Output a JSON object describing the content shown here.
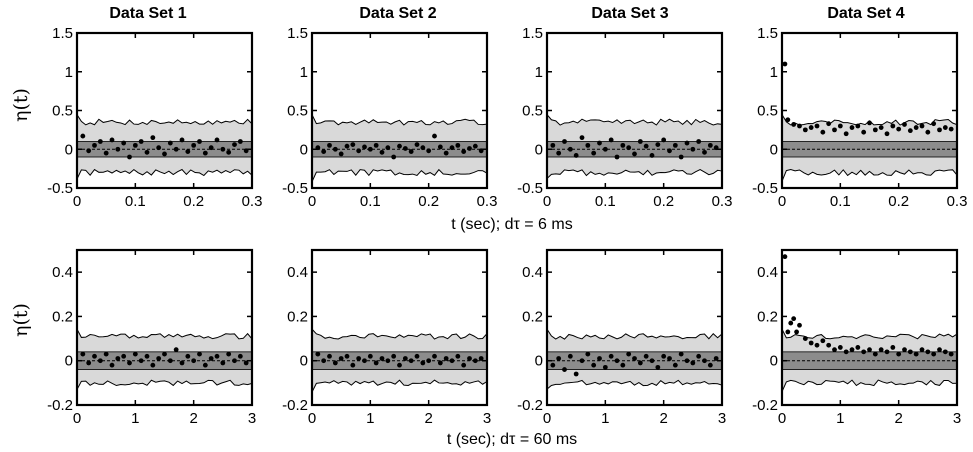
{
  "chart_data": {
    "type": "scatter",
    "ylabel": "η(t)",
    "rows": [
      {
        "xlabel": "t (sec); dτ = 6 ms",
        "xlim": [
          0,
          0.3
        ],
        "ylim": [
          -0.5,
          1.5
        ],
        "xticks": [
          "0",
          "0.1",
          "0.2",
          "0.3"
        ],
        "yticks": [
          "-0.5",
          "0",
          "0.5",
          "1",
          "1.5"
        ],
        "dark_band": [
          -0.1,
          0.1
        ],
        "light_band": [
          -0.3,
          0.35
        ],
        "panels": [
          {
            "title": "Data Set 1",
            "points": [
              [
                0.01,
                0.17
              ],
              [
                0.02,
                -0.02
              ],
              [
                0.03,
                0.05
              ],
              [
                0.04,
                0.1
              ],
              [
                0.05,
                -0.05
              ],
              [
                0.06,
                0.12
              ],
              [
                0.07,
                0.0
              ],
              [
                0.08,
                0.08
              ],
              [
                0.09,
                -0.1
              ],
              [
                0.1,
                0.05
              ],
              [
                0.11,
                0.1
              ],
              [
                0.12,
                -0.04
              ],
              [
                0.13,
                0.15
              ],
              [
                0.14,
                0.02
              ],
              [
                0.15,
                -0.06
              ],
              [
                0.16,
                0.08
              ],
              [
                0.17,
                0.0
              ],
              [
                0.18,
                0.12
              ],
              [
                0.19,
                -0.03
              ],
              [
                0.2,
                0.05
              ],
              [
                0.21,
                0.1
              ],
              [
                0.22,
                -0.05
              ],
              [
                0.23,
                0.02
              ],
              [
                0.24,
                0.12
              ],
              [
                0.25,
                0.0
              ],
              [
                0.26,
                -0.04
              ],
              [
                0.27,
                0.06
              ],
              [
                0.28,
                0.1
              ],
              [
                0.29,
                -0.02
              ]
            ]
          },
          {
            "title": "Data Set 2",
            "points": [
              [
                0.01,
                0.02
              ],
              [
                0.02,
                -0.03
              ],
              [
                0.03,
                0.05
              ],
              [
                0.04,
                0.0
              ],
              [
                0.05,
                -0.06
              ],
              [
                0.06,
                0.04
              ],
              [
                0.07,
                0.06
              ],
              [
                0.08,
                -0.02
              ],
              [
                0.09,
                0.03
              ],
              [
                0.1,
                0.0
              ],
              [
                0.11,
                0.05
              ],
              [
                0.12,
                -0.04
              ],
              [
                0.13,
                0.02
              ],
              [
                0.14,
                -0.1
              ],
              [
                0.15,
                0.04
              ],
              [
                0.16,
                0.01
              ],
              [
                0.17,
                -0.03
              ],
              [
                0.18,
                0.06
              ],
              [
                0.19,
                0.02
              ],
              [
                0.2,
                -0.02
              ],
              [
                0.21,
                0.17
              ],
              [
                0.22,
                0.03
              ],
              [
                0.23,
                -0.05
              ],
              [
                0.24,
                0.02
              ],
              [
                0.25,
                0.05
              ],
              [
                0.26,
                -0.03
              ],
              [
                0.27,
                0.01
              ],
              [
                0.28,
                0.04
              ],
              [
                0.29,
                -0.02
              ]
            ]
          },
          {
            "title": "Data Set 3",
            "points": [
              [
                0.01,
                0.05
              ],
              [
                0.02,
                -0.05
              ],
              [
                0.03,
                0.1
              ],
              [
                0.04,
                0.0
              ],
              [
                0.05,
                -0.08
              ],
              [
                0.06,
                0.15
              ],
              [
                0.07,
                0.05
              ],
              [
                0.08,
                -0.05
              ],
              [
                0.09,
                0.08
              ],
              [
                0.1,
                0.0
              ],
              [
                0.11,
                0.12
              ],
              [
                0.12,
                -0.1
              ],
              [
                0.13,
                0.05
              ],
              [
                0.14,
                0.02
              ],
              [
                0.15,
                -0.06
              ],
              [
                0.16,
                0.1
              ],
              [
                0.17,
                0.04
              ],
              [
                0.18,
                -0.08
              ],
              [
                0.19,
                0.06
              ],
              [
                0.2,
                0.12
              ],
              [
                0.21,
                -0.02
              ],
              [
                0.22,
                0.05
              ],
              [
                0.23,
                -0.1
              ],
              [
                0.24,
                0.08
              ],
              [
                0.25,
                0.0
              ],
              [
                0.26,
                0.1
              ],
              [
                0.27,
                -0.04
              ],
              [
                0.28,
                0.05
              ],
              [
                0.29,
                0.02
              ]
            ]
          },
          {
            "title": "Data Set 4",
            "points": [
              [
                0.005,
                1.1
              ],
              [
                0.01,
                0.38
              ],
              [
                0.02,
                0.32
              ],
              [
                0.03,
                0.3
              ],
              [
                0.04,
                0.25
              ],
              [
                0.05,
                0.28
              ],
              [
                0.06,
                0.3
              ],
              [
                0.07,
                0.22
              ],
              [
                0.08,
                0.33
              ],
              [
                0.09,
                0.25
              ],
              [
                0.1,
                0.3
              ],
              [
                0.11,
                0.2
              ],
              [
                0.12,
                0.28
              ],
              [
                0.13,
                0.3
              ],
              [
                0.14,
                0.22
              ],
              [
                0.15,
                0.34
              ],
              [
                0.16,
                0.25
              ],
              [
                0.17,
                0.28
              ],
              [
                0.18,
                0.2
              ],
              [
                0.19,
                0.3
              ],
              [
                0.2,
                0.26
              ],
              [
                0.21,
                0.32
              ],
              [
                0.22,
                0.24
              ],
              [
                0.23,
                0.28
              ],
              [
                0.24,
                0.3
              ],
              [
                0.25,
                0.22
              ],
              [
                0.26,
                0.33
              ],
              [
                0.27,
                0.25
              ],
              [
                0.28,
                0.28
              ],
              [
                0.29,
                0.26
              ]
            ]
          }
        ]
      },
      {
        "xlabel": "t (sec); dτ = 60 ms",
        "xlim": [
          0,
          3
        ],
        "ylim": [
          -0.2,
          0.5
        ],
        "xticks": [
          "0",
          "1",
          "2",
          "3"
        ],
        "yticks": [
          "-0.2",
          "0",
          "0.2",
          "0.4"
        ],
        "dark_band": [
          -0.04,
          0.04
        ],
        "light_band": [
          -0.1,
          0.11
        ],
        "panels": [
          {
            "title": "",
            "points": [
              [
                0.1,
                0.03
              ],
              [
                0.2,
                -0.01
              ],
              [
                0.3,
                0.02
              ],
              [
                0.4,
                0.0
              ],
              [
                0.5,
                0.03
              ],
              [
                0.6,
                -0.02
              ],
              [
                0.7,
                0.01
              ],
              [
                0.8,
                0.02
              ],
              [
                0.9,
                -0.01
              ],
              [
                1.0,
                0.03
              ],
              [
                1.1,
                0.0
              ],
              [
                1.2,
                0.02
              ],
              [
                1.3,
                -0.02
              ],
              [
                1.4,
                0.01
              ],
              [
                1.5,
                0.03
              ],
              [
                1.6,
                0.0
              ],
              [
                1.7,
                0.05
              ],
              [
                1.8,
                -0.01
              ],
              [
                1.9,
                0.02
              ],
              [
                2.0,
                0.0
              ],
              [
                2.1,
                0.03
              ],
              [
                2.2,
                -0.02
              ],
              [
                2.3,
                0.01
              ],
              [
                2.4,
                0.02
              ],
              [
                2.5,
                -0.01
              ],
              [
                2.6,
                0.03
              ],
              [
                2.7,
                0.0
              ],
              [
                2.8,
                0.02
              ],
              [
                2.9,
                -0.01
              ]
            ]
          },
          {
            "title": "",
            "points": [
              [
                0.1,
                0.03
              ],
              [
                0.2,
                0.0
              ],
              [
                0.3,
                0.02
              ],
              [
                0.4,
                -0.01
              ],
              [
                0.5,
                0.01
              ],
              [
                0.6,
                0.02
              ],
              [
                0.7,
                -0.02
              ],
              [
                0.8,
                0.01
              ],
              [
                0.9,
                0.0
              ],
              [
                1.0,
                0.02
              ],
              [
                1.1,
                -0.01
              ],
              [
                1.2,
                0.01
              ],
              [
                1.3,
                0.0
              ],
              [
                1.4,
                0.02
              ],
              [
                1.5,
                -0.02
              ],
              [
                1.6,
                0.01
              ],
              [
                1.7,
                0.0
              ],
              [
                1.8,
                0.02
              ],
              [
                1.9,
                -0.01
              ],
              [
                2.0,
                0.0
              ],
              [
                2.1,
                0.02
              ],
              [
                2.2,
                -0.01
              ],
              [
                2.3,
                0.01
              ],
              [
                2.4,
                0.0
              ],
              [
                2.5,
                0.02
              ],
              [
                2.6,
                -0.02
              ],
              [
                2.7,
                0.01
              ],
              [
                2.8,
                0.0
              ],
              [
                2.9,
                0.01
              ]
            ]
          },
          {
            "title": "",
            "points": [
              [
                0.1,
                -0.02
              ],
              [
                0.2,
                0.01
              ],
              [
                0.3,
                -0.04
              ],
              [
                0.4,
                0.02
              ],
              [
                0.5,
                -0.06
              ],
              [
                0.6,
                0.0
              ],
              [
                0.7,
                0.03
              ],
              [
                0.8,
                -0.02
              ],
              [
                0.9,
                0.01
              ],
              [
                1.0,
                -0.03
              ],
              [
                1.1,
                0.02
              ],
              [
                1.2,
                0.0
              ],
              [
                1.3,
                -0.02
              ],
              [
                1.4,
                0.03
              ],
              [
                1.5,
                0.01
              ],
              [
                1.6,
                -0.01
              ],
              [
                1.7,
                0.02
              ],
              [
                1.8,
                0.0
              ],
              [
                1.9,
                -0.03
              ],
              [
                2.0,
                0.02
              ],
              [
                2.1,
                0.01
              ],
              [
                2.2,
                -0.02
              ],
              [
                2.3,
                0.03
              ],
              [
                2.4,
                0.0
              ],
              [
                2.5,
                -0.01
              ],
              [
                2.6,
                0.02
              ],
              [
                2.7,
                0.0
              ],
              [
                2.8,
                -0.02
              ],
              [
                2.9,
                0.01
              ]
            ]
          },
          {
            "title": "",
            "points": [
              [
                0.05,
                0.47
              ],
              [
                0.1,
                0.13
              ],
              [
                0.15,
                0.17
              ],
              [
                0.2,
                0.19
              ],
              [
                0.25,
                0.13
              ],
              [
                0.3,
                0.16
              ],
              [
                0.4,
                0.1
              ],
              [
                0.5,
                0.08
              ],
              [
                0.6,
                0.07
              ],
              [
                0.7,
                0.09
              ],
              [
                0.8,
                0.07
              ],
              [
                0.9,
                0.05
              ],
              [
                1.0,
                0.06
              ],
              [
                1.1,
                0.04
              ],
              [
                1.2,
                0.05
              ],
              [
                1.3,
                0.06
              ],
              [
                1.4,
                0.04
              ],
              [
                1.5,
                0.05
              ],
              [
                1.6,
                0.03
              ],
              [
                1.7,
                0.05
              ],
              [
                1.8,
                0.04
              ],
              [
                1.9,
                0.06
              ],
              [
                2.0,
                0.03
              ],
              [
                2.1,
                0.05
              ],
              [
                2.2,
                0.04
              ],
              [
                2.3,
                0.03
              ],
              [
                2.4,
                0.05
              ],
              [
                2.5,
                0.04
              ],
              [
                2.6,
                0.03
              ],
              [
                2.7,
                0.05
              ],
              [
                2.8,
                0.04
              ],
              [
                2.9,
                0.03
              ]
            ]
          }
        ]
      }
    ],
    "grid": false,
    "colors": {
      "dark_band": "#8c8c8c",
      "light_band": "#d9d9d9",
      "points": "#000000",
      "envelope": "#000000"
    }
  }
}
